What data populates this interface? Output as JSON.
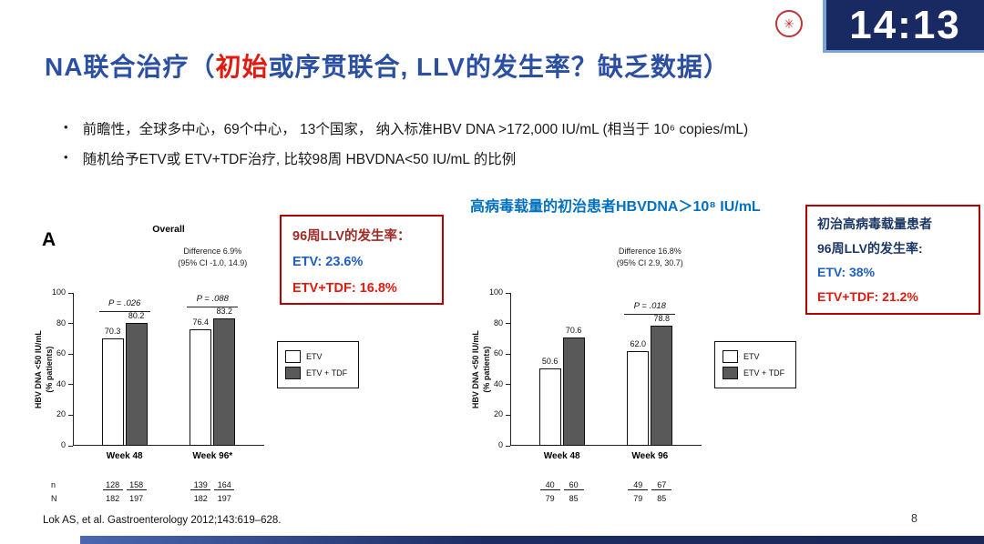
{
  "overlay": {
    "clock": "14:13"
  },
  "title": {
    "prefix": "NA联合治疗（",
    "highlight": "初始",
    "suffix": "或序贯联合, LLV的发生率？缺乏数据）"
  },
  "bullets": [
    "前瞻性，全球多中心，69个中心， 13个国家， 纳入标准HBV DNA >172,000 IU/mL (相当于 10⁶ copies/mL)",
    "随机给予ETV或 ETV+TDF治疗, 比较98周 HBVDNA<50 IU/mL 的比例"
  ],
  "section_heading": "高病毒载量的初治患者HBVDNA＞10⁸ IU/mL",
  "callout1": {
    "header": "96周LLV的发生率：",
    "etv": "ETV:  23.6%",
    "etv_tdf": "ETV+TDF: 16.8%"
  },
  "callout2": {
    "header1": "初治高病毒载量患者",
    "header2": "96周LLV的发生率:",
    "etv": "ETV:  38%",
    "etv_tdf": "ETV+TDF: 21.2%"
  },
  "chart_data": [
    {
      "type": "bar",
      "panel_label": "A",
      "title": "Overall",
      "ylabel": [
        "HBV DNA <50 IU/mL",
        "(% patients)"
      ],
      "ymax": 100,
      "yticks": [
        0,
        20,
        40,
        60,
        80,
        100
      ],
      "groups": [
        {
          "label": "Week 48",
          "p": "P = .026",
          "values": [
            70.3,
            80.2
          ],
          "n_top": [
            "128",
            "158"
          ],
          "n_bottom": [
            "182",
            "197"
          ]
        },
        {
          "label": "Week 96*",
          "p": "P = .088",
          "values": [
            76.4,
            83.2
          ],
          "n_top": [
            "139",
            "164"
          ],
          "n_bottom": [
            "182",
            "197"
          ]
        }
      ],
      "difference_note": [
        "Difference 6.9%",
        "(95% CI -1.0, 14.9)"
      ],
      "legend": [
        "ETV",
        "ETV + TDF"
      ],
      "n_row_labels": [
        "n",
        "N"
      ]
    },
    {
      "type": "bar",
      "panel_label": "",
      "title": "",
      "ylabel": [
        "HBV DNA <50 IU/mL",
        "(% patients)"
      ],
      "ymax": 100,
      "yticks": [
        0,
        20,
        40,
        60,
        80,
        100
      ],
      "groups": [
        {
          "label": "Week 48",
          "p": "",
          "values": [
            50.6,
            70.6
          ],
          "n_top": [
            "40",
            "60"
          ],
          "n_bottom": [
            "79",
            "85"
          ]
        },
        {
          "label": "Week 96",
          "p": "P = .018",
          "values": [
            62.0,
            78.8
          ],
          "n_top": [
            "49",
            "67"
          ],
          "n_bottom": [
            "79",
            "85"
          ]
        }
      ],
      "difference_note": [
        "Difference 16.8%",
        "(95% CI 2.9, 30.7)"
      ],
      "legend": [
        "ETV",
        "ETV + TDF"
      ],
      "n_row_labels": [
        "",
        ""
      ]
    }
  ],
  "footer": {
    "citation": "Lok AS, et al. Gastroenterology 2012;143:619–628.",
    "page_number": "8"
  },
  "colors": {
    "title_blue": "#2b4fa2",
    "highlight_red": "#e01b10",
    "section_heading_blue": "#0070c0",
    "callout_border_red": "#b30000",
    "etv_bar": "#ffffff",
    "etv_tdf_bar": "#595959",
    "clock_background": "#192a63"
  }
}
